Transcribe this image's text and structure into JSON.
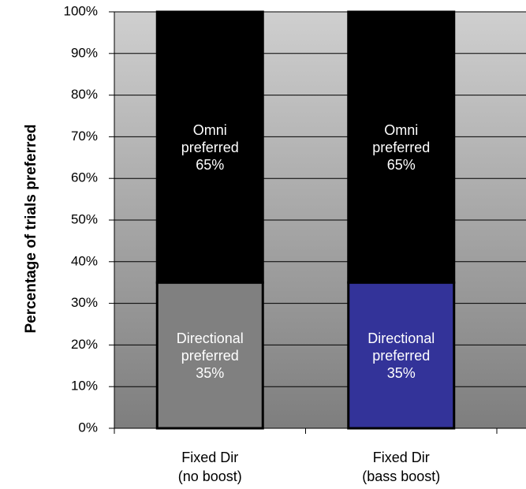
{
  "chart_data": {
    "type": "stacked_bar",
    "y_label": "Percentage of trials preferred",
    "categories": [
      "Fixed Dir\n(no boost)",
      "Fixed Dir\n(bass boost)"
    ],
    "series": [
      {
        "name": "Directional preferred",
        "colors": [
          "#808080",
          "#333399"
        ],
        "values": [
          35,
          35
        ],
        "value_labels": [
          "35%",
          "35%"
        ]
      },
      {
        "name": "Omni preferred",
        "color": "#000000",
        "values": [
          65,
          65
        ],
        "value_labels": [
          "65%",
          "65%"
        ]
      }
    ],
    "ylim": [
      0,
      100
    ],
    "yticks": [
      {
        "value": 0,
        "label": "0%"
      },
      {
        "value": 10,
        "label": "10%"
      },
      {
        "value": 20,
        "label": "20%"
      },
      {
        "value": 30,
        "label": "30%"
      },
      {
        "value": 40,
        "label": "40%"
      },
      {
        "value": 50,
        "label": "50%"
      },
      {
        "value": 60,
        "label": "60%"
      },
      {
        "value": 70,
        "label": "70%"
      },
      {
        "value": 80,
        "label": "80%"
      },
      {
        "value": 90,
        "label": "90%"
      },
      {
        "value": 100,
        "label": "100%"
      }
    ],
    "grid": true
  }
}
